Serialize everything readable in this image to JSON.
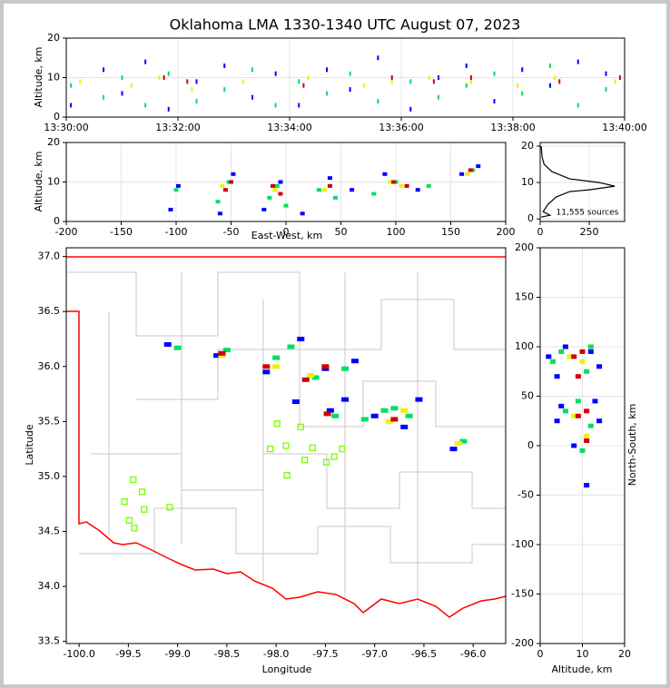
{
  "chart_data": [
    {
      "type": "scatter",
      "title": "Oklahoma LMA 1330-1340 UTC August 07, 2023",
      "ylabel": "Altitude, km",
      "xlim": [
        "13:30:00",
        "13:40:00"
      ],
      "xticks": [
        "13:30:00",
        "13:32:00",
        "13:34:00",
        "13:36:00",
        "13:38:00",
        "13:40:00"
      ],
      "ylim": [
        0,
        20
      ],
      "yticks": [
        0,
        10,
        20
      ],
      "grid": true,
      "series": [
        {
          "color": "#0000ff",
          "x": [
            "13:30:05",
            "13:30:40",
            "13:31:00",
            "13:31:25",
            "13:31:50",
            "13:32:20",
            "13:32:50",
            "13:33:20",
            "13:33:45",
            "13:34:10",
            "13:34:40",
            "13:35:05",
            "13:35:35",
            "13:36:10",
            "13:36:40",
            "13:37:10",
            "13:37:40",
            "13:38:10",
            "13:38:40",
            "13:39:10",
            "13:39:40"
          ],
          "y": [
            3,
            12,
            6,
            14,
            2,
            9,
            13,
            5,
            11,
            3,
            12,
            7,
            15,
            2,
            10,
            13,
            4,
            12,
            8,
            14,
            11
          ]
        },
        {
          "color": "#00e060",
          "x": [
            "13:30:05",
            "13:30:40",
            "13:31:00",
            "13:31:25",
            "13:31:50",
            "13:32:20",
            "13:32:50",
            "13:33:20",
            "13:33:45",
            "13:34:10",
            "13:34:40",
            "13:35:05",
            "13:35:35",
            "13:36:10",
            "13:36:40",
            "13:37:10",
            "13:37:40",
            "13:38:10",
            "13:38:40",
            "13:39:10",
            "13:39:40"
          ],
          "y": [
            8,
            5,
            10,
            3,
            11,
            4,
            7,
            12,
            3,
            9,
            6,
            11,
            4,
            9,
            5,
            8,
            11,
            6,
            13,
            3,
            7
          ]
        },
        {
          "color": "#f0f000",
          "x": [
            "13:30:15",
            "13:31:10",
            "13:31:40",
            "13:32:15",
            "13:33:10",
            "13:34:20",
            "13:35:20",
            "13:35:50",
            "13:36:30",
            "13:37:15",
            "13:38:05",
            "13:38:45",
            "13:39:50"
          ],
          "y": [
            9,
            8,
            10,
            7,
            9,
            10,
            8,
            9,
            10,
            9,
            8,
            10,
            9
          ]
        },
        {
          "color": "#d00000",
          "x": [
            "13:31:45",
            "13:32:10",
            "13:34:15",
            "13:35:50",
            "13:36:35",
            "13:37:15",
            "13:38:50",
            "13:39:55"
          ],
          "y": [
            10,
            9,
            8,
            10,
            9,
            10,
            9,
            10
          ]
        }
      ]
    },
    {
      "type": "scatter",
      "xlabel": "East-West, km",
      "ylabel": "Altitude, km",
      "xlim": [
        -200,
        200
      ],
      "xticks": [
        -200,
        -150,
        -100,
        -50,
        0,
        50,
        100,
        150,
        200
      ],
      "ylim": [
        0,
        20
      ],
      "yticks": [
        0,
        10,
        20
      ],
      "grid": true,
      "series": [
        {
          "color": "#0000ff",
          "x": [
            -105,
            -98,
            -60,
            -48,
            -20,
            -5,
            15,
            40,
            60,
            90,
            120,
            160,
            175
          ],
          "y": [
            3,
            9,
            2,
            12,
            3,
            10,
            2,
            11,
            8,
            12,
            8,
            12,
            14
          ]
        },
        {
          "color": "#00e060",
          "x": [
            -100,
            -62,
            -52,
            -15,
            -8,
            0,
            30,
            45,
            80,
            100,
            130,
            170
          ],
          "y": [
            8,
            5,
            10,
            6,
            9,
            4,
            8,
            6,
            7,
            10,
            9,
            13
          ]
        },
        {
          "color": "#f0f000",
          "x": [
            -58,
            -10,
            35,
            95,
            105,
            165
          ],
          "y": [
            9,
            8,
            8,
            10,
            9,
            12
          ]
        },
        {
          "color": "#d00000",
          "x": [
            -55,
            -50,
            -12,
            -5,
            40,
            98,
            110,
            168
          ],
          "y": [
            8,
            10,
            9,
            7,
            9,
            10,
            9,
            13
          ]
        }
      ]
    },
    {
      "type": "line",
      "annotation": "11,555 sources",
      "xlim": [
        0,
        430
      ],
      "xticks": [
        0,
        250
      ],
      "ylim": [
        -0.7,
        21
      ],
      "yticks": [
        0,
        10,
        20
      ],
      "grid": true,
      "series": [
        {
          "color": "#000000",
          "x": [
            5,
            10,
            20,
            60,
            150,
            300,
            380,
            250,
            150,
            80,
            40,
            15,
            50,
            5
          ],
          "y": [
            20,
            17,
            15,
            13,
            11,
            10,
            9,
            8,
            7.5,
            6,
            4,
            2,
            1,
            0.5
          ]
        }
      ]
    },
    {
      "type": "scatter",
      "xlabel": "Longitude",
      "ylabel": "Latitude",
      "xlim": [
        -100.13,
        -95.67
      ],
      "xticks": [
        {
          "value": -100,
          "label": "-100.0"
        },
        {
          "value": -99.5,
          "label": "-99.5"
        },
        {
          "value": -99,
          "label": "-99.0"
        },
        {
          "value": -98.5,
          "label": "-98.5"
        },
        {
          "value": -98,
          "label": "-98.0"
        },
        {
          "value": -97.5,
          "label": "-97.5"
        },
        {
          "value": -97,
          "label": "-97.0"
        },
        {
          "value": -96.5,
          "label": "-96.5"
        },
        {
          "value": -96,
          "label": "-96.0"
        }
      ],
      "ylim": [
        33.48,
        37.08
      ],
      "yticks": [
        {
          "value": 33.5,
          "label": "33.5"
        },
        {
          "value": 34,
          "label": "34.0"
        },
        {
          "value": 34.5,
          "label": "34.5"
        },
        {
          "value": 35,
          "label": "35.0"
        },
        {
          "value": 35.5,
          "label": "35.5"
        },
        {
          "value": 36,
          "label": "36.0"
        },
        {
          "value": 36.5,
          "label": "36.5"
        },
        {
          "value": 37,
          "label": "37.0"
        }
      ],
      "grid": false,
      "series": [
        {
          "color": "#0000ff",
          "x": [
            -99.1,
            -98.6,
            -98.1,
            -97.75,
            -97.5,
            -97.2,
            -97.0,
            -96.7,
            -96.55,
            -97.45,
            -96.2,
            -97.8,
            -97.3
          ],
          "y": [
            36.2,
            36.1,
            35.95,
            36.25,
            35.98,
            36.05,
            35.55,
            35.45,
            35.7,
            35.6,
            35.25,
            35.68,
            35.7
          ]
        },
        {
          "color": "#00e060",
          "x": [
            -99.0,
            -98.5,
            -98.0,
            -97.85,
            -97.6,
            -97.3,
            -96.9,
            -96.65,
            -96.8,
            -97.4,
            -96.1,
            -97.1
          ],
          "y": [
            36.17,
            36.15,
            36.08,
            36.18,
            35.9,
            35.98,
            35.6,
            35.55,
            35.62,
            35.55,
            35.32,
            35.52
          ]
        },
        {
          "color": "#f0f000",
          "x": [
            -98.55,
            -98.0,
            -97.65,
            -96.85,
            -96.7,
            -96.15
          ],
          "y": [
            36.1,
            36.0,
            35.92,
            35.5,
            35.6,
            35.3
          ]
        },
        {
          "color": "#d00000",
          "x": [
            -98.55,
            -98.1,
            -97.7,
            -96.8,
            -97.48,
            -97.5
          ],
          "y": [
            36.12,
            36.0,
            35.88,
            35.52,
            35.57,
            36.0
          ]
        },
        {
          "color": "#7cfc00",
          "marker": "open-square",
          "x": [
            -97.99,
            -97.75,
            -98.06,
            -97.9,
            -97.63,
            -97.33,
            -97.41,
            -97.49,
            -97.71,
            -97.89,
            -99.45,
            -99.36,
            -99.54,
            -99.34,
            -99.08,
            -99.49,
            -99.44
          ],
          "y": [
            35.48,
            35.45,
            35.25,
            35.28,
            35.26,
            35.25,
            35.18,
            35.13,
            35.15,
            35.01,
            34.97,
            34.86,
            34.77,
            34.7,
            34.72,
            34.6,
            34.53
          ]
        }
      ]
    },
    {
      "type": "scatter",
      "xlabel": "Altitude, km",
      "ylabel": "North-South, km",
      "xlim": [
        0,
        20
      ],
      "xticks": [
        0,
        10,
        20
      ],
      "ylim": [
        -200,
        200
      ],
      "yticks": [
        -200,
        -150,
        -100,
        -50,
        0,
        50,
        100,
        150,
        200
      ],
      "grid": true,
      "series": [
        {
          "color": "#0000ff",
          "x": [
            2,
            4,
            6,
            12,
            14,
            5,
            13,
            4,
            8,
            14,
            11
          ],
          "y": [
            90,
            70,
            100,
            95,
            80,
            40,
            45,
            25,
            0,
            25,
            -40
          ]
        },
        {
          "color": "#00e060",
          "x": [
            3,
            5,
            11,
            12,
            6,
            12,
            9,
            10
          ],
          "y": [
            85,
            95,
            75,
            100,
            35,
            20,
            45,
            -5
          ]
        },
        {
          "color": "#f0f000",
          "x": [
            7,
            10,
            8,
            11
          ],
          "y": [
            90,
            85,
            30,
            10
          ]
        },
        {
          "color": "#d00000",
          "x": [
            8,
            9,
            10,
            9,
            11,
            11
          ],
          "y": [
            90,
            70,
            95,
            30,
            35,
            5
          ]
        }
      ]
    }
  ]
}
